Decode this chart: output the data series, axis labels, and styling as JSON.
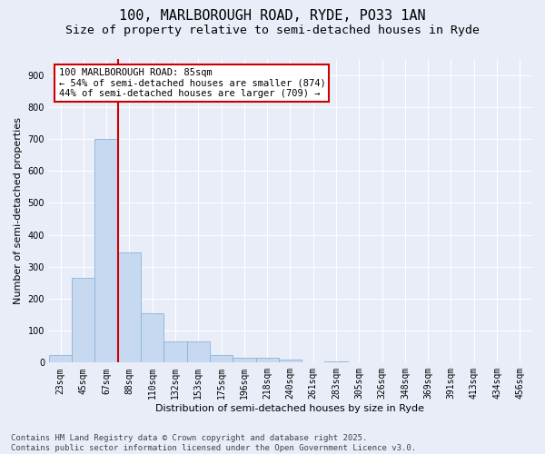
{
  "title_line1": "100, MARLBOROUGH ROAD, RYDE, PO33 1AN",
  "title_line2": "Size of property relative to semi-detached houses in Ryde",
  "xlabel": "Distribution of semi-detached houses by size in Ryde",
  "ylabel": "Number of semi-detached properties",
  "categories": [
    "23sqm",
    "45sqm",
    "67sqm",
    "88sqm",
    "110sqm",
    "132sqm",
    "153sqm",
    "175sqm",
    "196sqm",
    "218sqm",
    "240sqm",
    "261sqm",
    "283sqm",
    "305sqm",
    "326sqm",
    "348sqm",
    "369sqm",
    "391sqm",
    "413sqm",
    "434sqm",
    "456sqm"
  ],
  "values": [
    25,
    265,
    700,
    345,
    155,
    65,
    65,
    25,
    15,
    15,
    10,
    0,
    5,
    0,
    0,
    0,
    0,
    0,
    0,
    0,
    0
  ],
  "bar_color": "#c7d9f0",
  "bar_edge_color": "#8ab4d8",
  "vline_color": "#cc0000",
  "annotation_text": "100 MARLBOROUGH ROAD: 85sqm\n← 54% of semi-detached houses are smaller (874)\n44% of semi-detached houses are larger (709) →",
  "annotation_box_color": "#ffffff",
  "annotation_box_edge_color": "#cc0000",
  "ylim": [
    0,
    950
  ],
  "yticks": [
    0,
    100,
    200,
    300,
    400,
    500,
    600,
    700,
    800,
    900
  ],
  "background_color": "#e8edf7",
  "plot_background_color": "#e8edf7",
  "footer_text": "Contains HM Land Registry data © Crown copyright and database right 2025.\nContains public sector information licensed under the Open Government Licence v3.0.",
  "title_fontsize": 11,
  "subtitle_fontsize": 9.5,
  "axis_label_fontsize": 8,
  "tick_fontsize": 7,
  "annotation_fontsize": 7.5,
  "footer_fontsize": 6.5,
  "grid_color": "#ffffff"
}
